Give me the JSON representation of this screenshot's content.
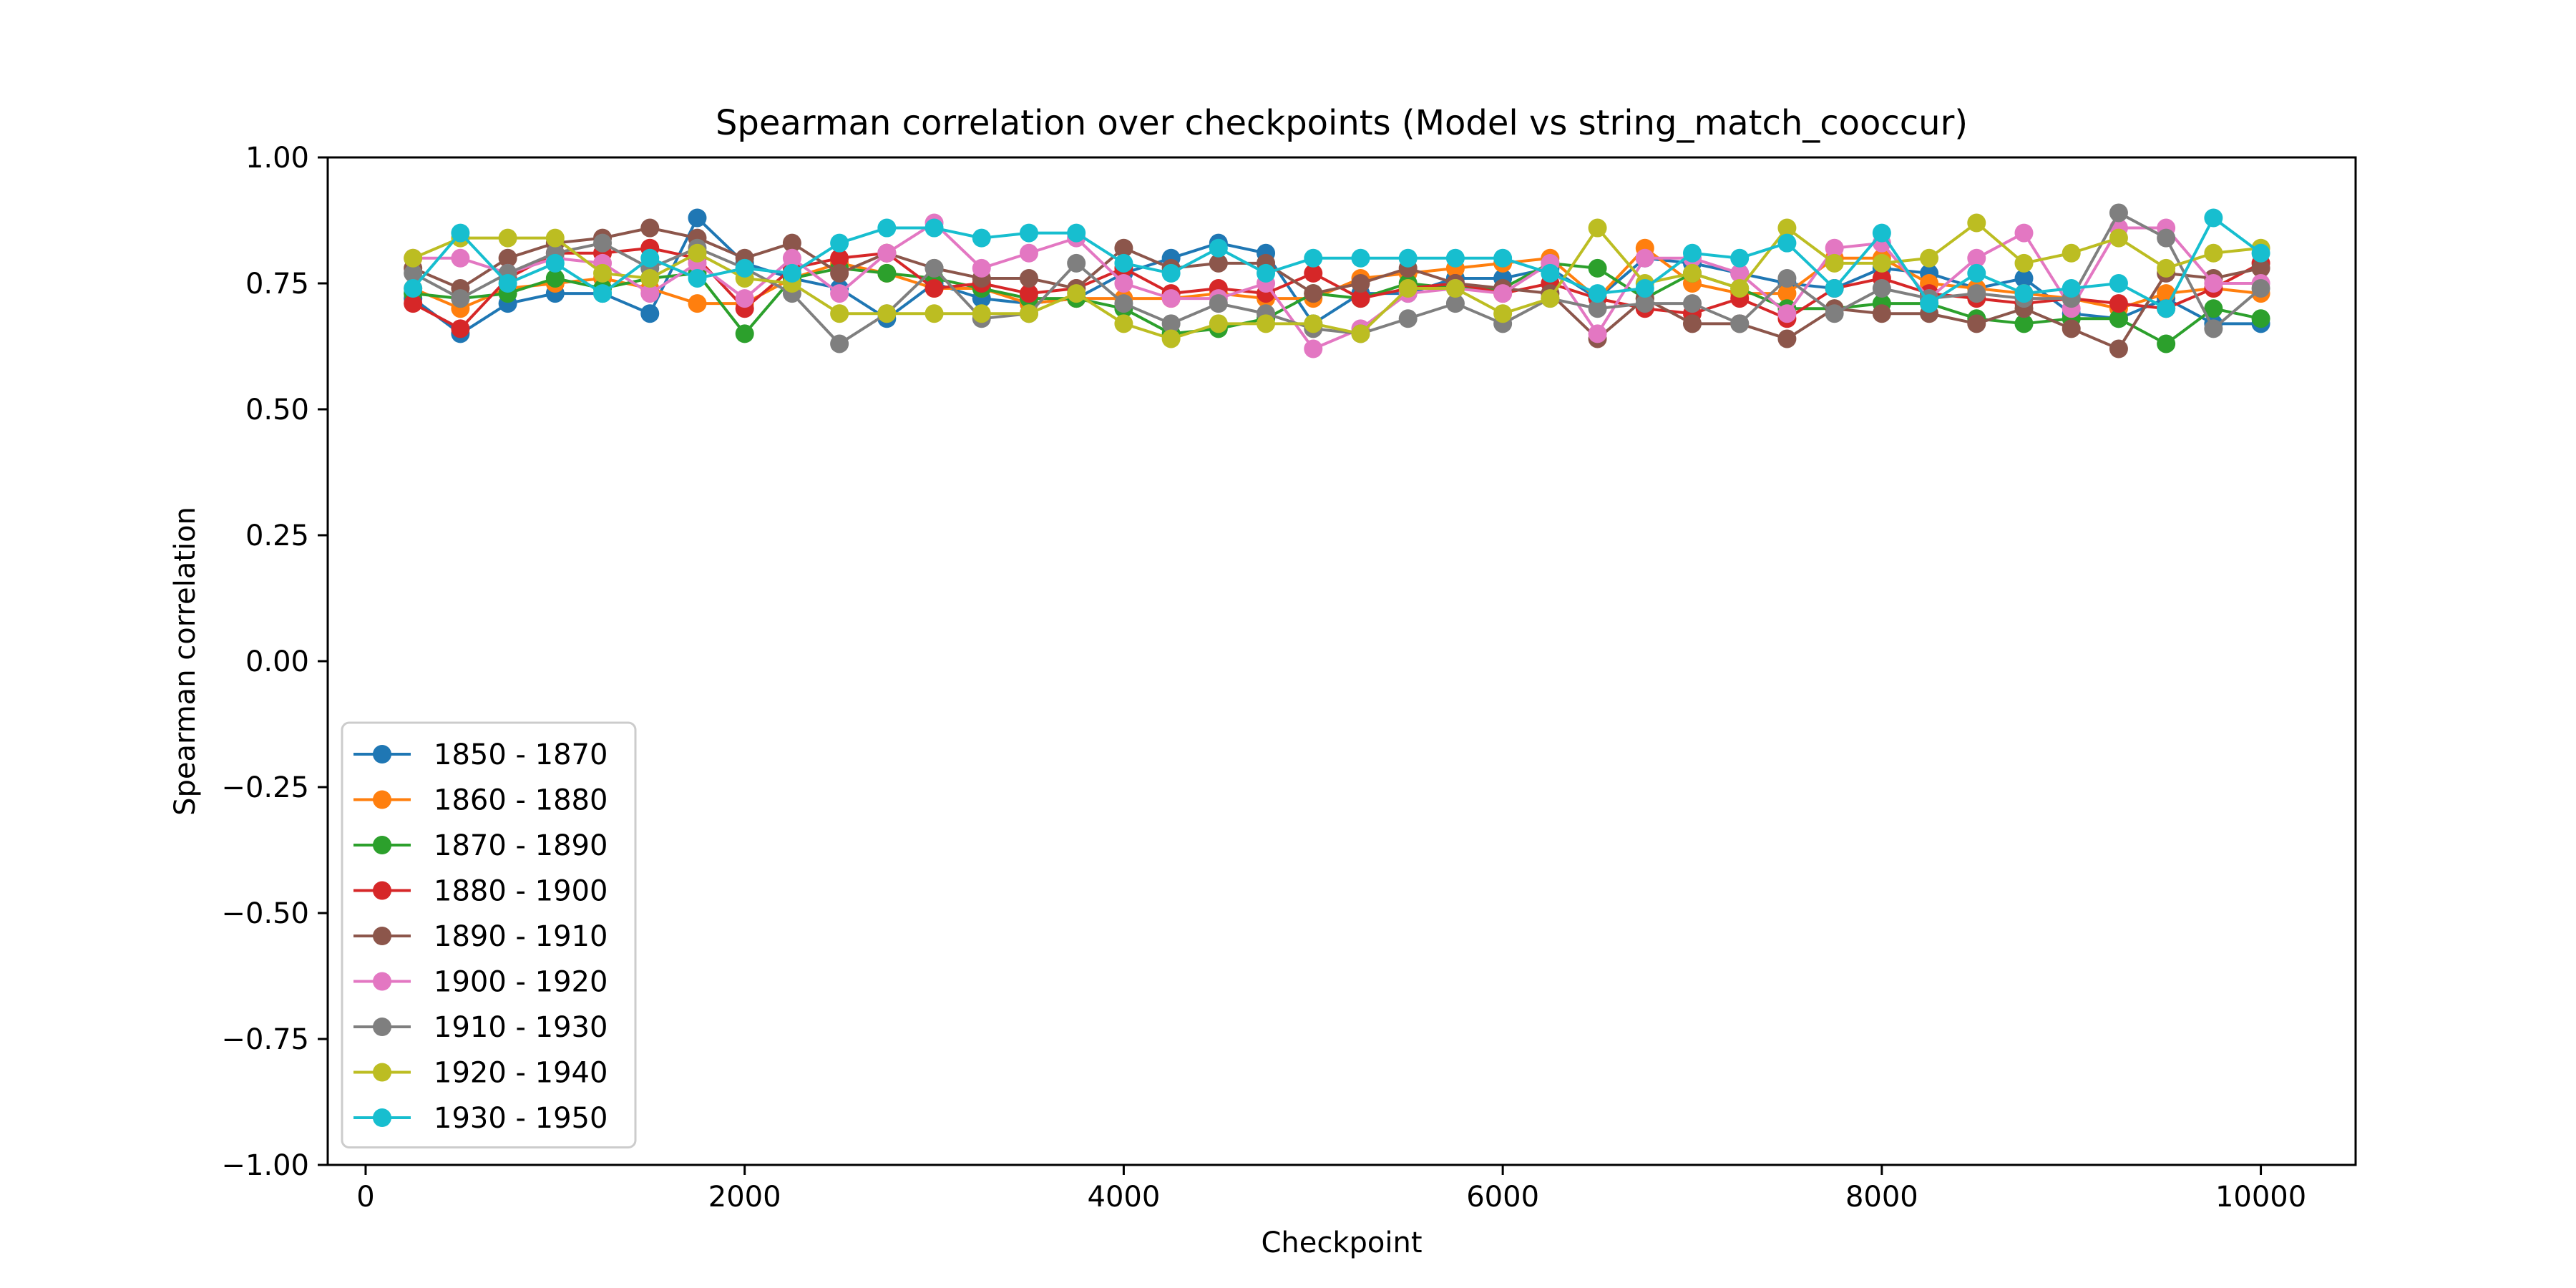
{
  "chart_data": {
    "type": "line",
    "title": "Spearman correlation over checkpoints (Model vs string_match_cooccur)",
    "xlabel": "Checkpoint",
    "ylabel": "Spearman correlation",
    "xlim": [
      -200,
      10500
    ],
    "ylim": [
      -1.0,
      1.0
    ],
    "xticks": [
      0,
      2000,
      4000,
      6000,
      8000,
      10000
    ],
    "yticks": [
      -1.0,
      -0.75,
      -0.5,
      -0.25,
      0.0,
      0.25,
      0.5,
      0.75,
      1.0
    ],
    "ytick_labels": [
      "−1.00",
      "−0.75",
      "−0.50",
      "−0.25",
      "0.00",
      "0.25",
      "0.50",
      "0.75",
      "1.00"
    ],
    "grid": false,
    "legend_position": "lower-left",
    "x": [
      250,
      500,
      750,
      1000,
      1250,
      1500,
      1750,
      2000,
      2250,
      2500,
      2750,
      3000,
      3250,
      3500,
      3750,
      4000,
      4250,
      4500,
      4750,
      5000,
      5250,
      5500,
      5750,
      6000,
      6250,
      6500,
      6750,
      7000,
      7250,
      7500,
      7750,
      8000,
      8250,
      8500,
      8750,
      9000,
      9250,
      9500,
      9750,
      10000
    ],
    "series": [
      {
        "name": "1850 - 1870",
        "color": "#1f77b4",
        "values": [
          0.72,
          0.65,
          0.71,
          0.73,
          0.73,
          0.69,
          0.88,
          0.79,
          0.76,
          0.74,
          0.68,
          0.75,
          0.72,
          0.71,
          0.72,
          0.77,
          0.8,
          0.83,
          0.81,
          0.67,
          0.73,
          0.73,
          0.76,
          0.76,
          0.78,
          0.72,
          0.8,
          0.79,
          0.77,
          0.75,
          0.74,
          0.78,
          0.77,
          0.74,
          0.76,
          0.69,
          0.68,
          0.72,
          0.67,
          0.67
        ]
      },
      {
        "name": "1860 - 1880",
        "color": "#ff7f0e",
        "values": [
          0.74,
          0.7,
          0.74,
          0.75,
          0.76,
          0.74,
          0.71,
          0.71,
          0.76,
          0.79,
          0.77,
          0.74,
          0.74,
          0.71,
          0.72,
          0.72,
          0.72,
          0.73,
          0.72,
          0.72,
          0.76,
          0.77,
          0.78,
          0.79,
          0.8,
          0.72,
          0.82,
          0.75,
          0.73,
          0.73,
          0.8,
          0.8,
          0.75,
          0.74,
          0.73,
          0.72,
          0.7,
          0.73,
          0.74,
          0.73
        ]
      },
      {
        "name": "1870 - 1890",
        "color": "#2ca02c",
        "values": [
          0.73,
          0.72,
          0.73,
          0.76,
          0.74,
          0.76,
          0.77,
          0.65,
          0.76,
          0.78,
          0.77,
          0.76,
          0.74,
          0.72,
          0.72,
          0.7,
          0.65,
          0.66,
          0.68,
          0.73,
          0.72,
          0.75,
          0.74,
          0.74,
          0.79,
          0.78,
          0.72,
          0.77,
          0.74,
          0.7,
          0.7,
          0.71,
          0.71,
          0.68,
          0.67,
          0.68,
          0.68,
          0.63,
          0.7,
          0.68
        ]
      },
      {
        "name": "1880 - 1900",
        "color": "#d62728",
        "values": [
          0.71,
          0.66,
          0.76,
          0.81,
          0.81,
          0.82,
          0.8,
          0.7,
          0.78,
          0.8,
          0.81,
          0.74,
          0.75,
          0.73,
          0.74,
          0.78,
          0.73,
          0.74,
          0.73,
          0.77,
          0.72,
          0.74,
          0.75,
          0.73,
          0.75,
          0.72,
          0.7,
          0.69,
          0.72,
          0.68,
          0.74,
          0.76,
          0.73,
          0.72,
          0.71,
          0.72,
          0.71,
          0.7,
          0.74,
          0.79
        ]
      },
      {
        "name": "1890 - 1910",
        "color": "#8c564b",
        "values": [
          0.78,
          0.74,
          0.8,
          0.83,
          0.84,
          0.86,
          0.84,
          0.8,
          0.83,
          0.77,
          0.81,
          0.78,
          0.76,
          0.76,
          0.74,
          0.82,
          0.78,
          0.79,
          0.79,
          0.73,
          0.75,
          0.78,
          0.75,
          0.74,
          0.73,
          0.64,
          0.72,
          0.67,
          0.67,
          0.64,
          0.7,
          0.69,
          0.69,
          0.67,
          0.7,
          0.66,
          0.62,
          0.77,
          0.76,
          0.78
        ]
      },
      {
        "name": "1900 - 1920",
        "color": "#e377c2",
        "values": [
          0.8,
          0.8,
          0.77,
          0.8,
          0.79,
          0.73,
          0.79,
          0.72,
          0.8,
          0.73,
          0.81,
          0.87,
          0.78,
          0.81,
          0.84,
          0.75,
          0.72,
          0.72,
          0.75,
          0.62,
          0.66,
          0.73,
          0.74,
          0.73,
          0.79,
          0.65,
          0.8,
          0.8,
          0.77,
          0.69,
          0.82,
          0.83,
          0.72,
          0.8,
          0.85,
          0.7,
          0.86,
          0.86,
          0.75,
          0.75
        ]
      },
      {
        "name": "1910 - 1930",
        "color": "#7f7f7f",
        "values": [
          0.77,
          0.72,
          0.77,
          0.81,
          0.83,
          0.78,
          0.82,
          0.78,
          0.73,
          0.63,
          0.69,
          0.78,
          0.68,
          0.69,
          0.79,
          0.71,
          0.67,
          0.71,
          0.69,
          0.66,
          0.65,
          0.68,
          0.71,
          0.67,
          0.72,
          0.7,
          0.71,
          0.71,
          0.67,
          0.76,
          0.69,
          0.74,
          0.72,
          0.73,
          0.72,
          0.72,
          0.89,
          0.84,
          0.66,
          0.74
        ]
      },
      {
        "name": "1920 - 1940",
        "color": "#bcbd22",
        "values": [
          0.8,
          0.84,
          0.84,
          0.84,
          0.77,
          0.76,
          0.81,
          0.76,
          0.75,
          0.69,
          0.69,
          0.69,
          0.69,
          0.69,
          0.73,
          0.67,
          0.64,
          0.67,
          0.67,
          0.67,
          0.65,
          0.74,
          0.74,
          0.69,
          0.72,
          0.86,
          0.75,
          0.77,
          0.74,
          0.86,
          0.79,
          0.79,
          0.8,
          0.87,
          0.79,
          0.81,
          0.84,
          0.78,
          0.81,
          0.82
        ]
      },
      {
        "name": "1930 - 1950",
        "color": "#17becf",
        "values": [
          0.74,
          0.85,
          0.75,
          0.79,
          0.73,
          0.8,
          0.76,
          0.78,
          0.77,
          0.83,
          0.86,
          0.86,
          0.84,
          0.85,
          0.85,
          0.79,
          0.77,
          0.82,
          0.77,
          0.8,
          0.8,
          0.8,
          0.8,
          0.8,
          0.77,
          0.73,
          0.74,
          0.81,
          0.8,
          0.83,
          0.74,
          0.85,
          0.71,
          0.77,
          0.73,
          0.74,
          0.75,
          0.7,
          0.88,
          0.81
        ]
      }
    ]
  }
}
